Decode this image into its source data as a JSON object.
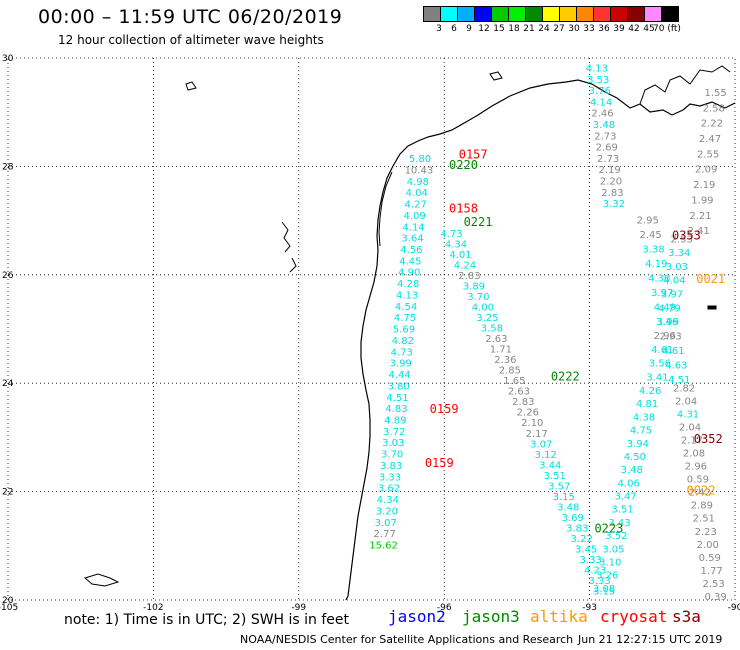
{
  "title": "00:00 – 11:59 UTC 06/20/2019",
  "subtitle": "12 hour collection of altimeter wave heights",
  "legend_scale": {
    "colors": [
      "#808080",
      "#00ffff",
      "#00b0ff",
      "#0000ff",
      "#00cc00",
      "#00ee00",
      "#008800",
      "#ffff00",
      "#ffcc00",
      "#ff8800",
      "#ff3333",
      "#cc0000",
      "#880000",
      "#ff88ff",
      "#000000"
    ],
    "labels": [
      "3",
      "6",
      "9",
      "12",
      "15",
      "18",
      "21",
      "24",
      "27",
      "30",
      "33",
      "36",
      "39",
      "42",
      "45",
      "70 (ft)"
    ]
  },
  "axes": {
    "lon_ticks": [
      "-105",
      "-102",
      "-99",
      "-96",
      "-93",
      "-90"
    ],
    "lat_ticks": [
      "30",
      "28",
      "26",
      "24",
      "22",
      "20"
    ]
  },
  "note": "note:  1) Time is in UTC;  2) SWH is in feet",
  "satellites": [
    {
      "name": "jason2",
      "color": "#0000ff"
    },
    {
      "name": "jason3",
      "color": "#008800"
    },
    {
      "name": "altika",
      "color": "#ff9900"
    },
    {
      "name": "cryosat",
      "color": "#ff0000"
    },
    {
      "name": "s3a",
      "color": "#880000"
    }
  ],
  "footer_left": "NOAA/NESDIS Center for Satellite Applications and Research",
  "footer_right": "Jun 21 12:27:15 UTC 2019",
  "pass_times": [
    {
      "text": "0157",
      "color": "#ff0000",
      "lon": -95.7,
      "lat": 28.15
    },
    {
      "text": "0220",
      "color": "#008800",
      "lon": -95.9,
      "lat": 27.95
    },
    {
      "text": "0158",
      "color": "#ff0000",
      "lon": -95.9,
      "lat": 27.15
    },
    {
      "text": "0221",
      "color": "#008800",
      "lon": -95.6,
      "lat": 26.9
    },
    {
      "text": "0353",
      "color": "#880000",
      "lon": -91.3,
      "lat": 26.65
    },
    {
      "text": "0021",
      "color": "#ff9900",
      "lon": -90.8,
      "lat": 25.85
    },
    {
      "text": "0222",
      "color": "#008800",
      "lon": -93.8,
      "lat": 24.05
    },
    {
      "text": "0159",
      "color": "#ff0000",
      "lon": -96.3,
      "lat": 23.45
    },
    {
      "text": "0352",
      "color": "#880000",
      "lon": -90.85,
      "lat": 22.9
    },
    {
      "text": "0159",
      "color": "#ff0000",
      "lon": -96.4,
      "lat": 22.45
    },
    {
      "text": "0022",
      "color": "#ff9900",
      "lon": -91.0,
      "lat": 21.95
    },
    {
      "text": "0223",
      "color": "#008800",
      "lon": -92.9,
      "lat": 21.25
    },
    {
      "text": "0",
      "color": "#ff9900",
      "lon": -89.85,
      "lat": 29.15
    },
    {
      "text": "0.",
      "color": "#880000",
      "lon": -89.85,
      "lat": 20.0
    }
  ],
  "tracks": [
    {
      "name": "cryosat-west",
      "lon_start": -96.5,
      "lat_start": 28.08,
      "lon_end": -97.25,
      "lat_end": 20.95,
      "values": [
        {
          "v": "5.80",
          "c": "#00e0e0"
        },
        {
          "v": "10.43",
          "c": "#888888"
        },
        {
          "v": "4.98",
          "c": "#00e0e0"
        },
        {
          "v": "4.04",
          "c": "#00e0e0"
        },
        {
          "v": "4.27",
          "c": "#00e0e0"
        },
        {
          "v": "4.09",
          "c": "#00e0e0"
        },
        {
          "v": "4.14",
          "c": "#00e0e0"
        },
        {
          "v": "3.64",
          "c": "#00e0e0"
        },
        {
          "v": "4.56",
          "c": "#00e0e0"
        },
        {
          "v": "4.45",
          "c": "#00e0e0"
        },
        {
          "v": "4.90",
          "c": "#00e0e0"
        },
        {
          "v": "4.28",
          "c": "#00e0e0"
        },
        {
          "v": "4.13",
          "c": "#00e0e0"
        },
        {
          "v": "4.54",
          "c": "#00e0e0"
        },
        {
          "v": "4.75",
          "c": "#00e0e0"
        },
        {
          "v": "5.69",
          "c": "#00e0e0"
        },
        {
          "v": "4.82",
          "c": "#00e0e0"
        },
        {
          "v": "4.73",
          "c": "#00e0e0"
        },
        {
          "v": "3.99",
          "c": "#00e0e0"
        },
        {
          "v": "4.44",
          "c": "#00e0e0"
        },
        {
          "v": "3.80",
          "c": "#00e0e0"
        },
        {
          "v": "4.51",
          "c": "#00e0e0"
        },
        {
          "v": "4.83",
          "c": "#00e0e0"
        },
        {
          "v": "4.89",
          "c": "#00e0e0"
        },
        {
          "v": "3.72",
          "c": "#00e0e0"
        },
        {
          "v": "3.03",
          "c": "#00e0e0"
        },
        {
          "v": "3.70",
          "c": "#00e0e0"
        },
        {
          "v": "3.83",
          "c": "#00e0e0"
        },
        {
          "v": "3.33",
          "c": "#00e0e0"
        },
        {
          "v": "3.62",
          "c": "#00e0e0"
        },
        {
          "v": "4.34",
          "c": "#00e0e0"
        },
        {
          "v": "3.20",
          "c": "#00e0e0"
        },
        {
          "v": "3.07",
          "c": "#00e0e0"
        },
        {
          "v": "2.77",
          "c": "#888888"
        },
        {
          "v": "15.62",
          "c": "#00cc00"
        }
      ]
    },
    {
      "name": "jason3-diag",
      "lon_start": -95.85,
      "lat_start": 26.7,
      "lon_end": -92.7,
      "lat_end": 20.1,
      "values": [
        {
          "v": "4.73",
          "c": "#00e0e0"
        },
        {
          "v": "4.34",
          "c": "#00e0e0"
        },
        {
          "v": "4.01",
          "c": "#00e0e0"
        },
        {
          "v": "4.24",
          "c": "#00e0e0"
        },
        {
          "v": "2.83",
          "c": "#888888"
        },
        {
          "v": "3.89",
          "c": "#00e0e0"
        },
        {
          "v": "3.70",
          "c": "#00e0e0"
        },
        {
          "v": "4.00",
          "c": "#00e0e0"
        },
        {
          "v": "3.25",
          "c": "#00e0e0"
        },
        {
          "v": "3.58",
          "c": "#00e0e0"
        },
        {
          "v": "2.63",
          "c": "#888888"
        },
        {
          "v": "1.71",
          "c": "#888888"
        },
        {
          "v": "2.36",
          "c": "#888888"
        },
        {
          "v": "2.85",
          "c": "#888888"
        },
        {
          "v": "1.65",
          "c": "#888888"
        },
        {
          "v": "2.63",
          "c": "#888888"
        },
        {
          "v": "2.83",
          "c": "#888888"
        },
        {
          "v": "2.26",
          "c": "#888888"
        },
        {
          "v": "2.10",
          "c": "#888888"
        },
        {
          "v": "2.17",
          "c": "#888888"
        },
        {
          "v": "3.07",
          "c": "#00e0e0"
        },
        {
          "v": "3.12",
          "c": "#00e0e0"
        },
        {
          "v": "3.44",
          "c": "#00e0e0"
        },
        {
          "v": "3.51",
          "c": "#00e0e0"
        },
        {
          "v": "3.57",
          "c": "#00e0e0"
        },
        {
          "v": "3.15",
          "c": "#00e0e0"
        },
        {
          "v": "3.48",
          "c": "#00e0e0"
        },
        {
          "v": "3.69",
          "c": "#00e0e0"
        },
        {
          "v": "3.83",
          "c": "#00e0e0"
        },
        {
          "v": "3.22",
          "c": "#00e0e0"
        },
        {
          "v": "3.45",
          "c": "#00e0e0"
        },
        {
          "v": "3.33",
          "c": "#00e0e0"
        },
        {
          "v": "4.23",
          "c": "#00e0e0"
        },
        {
          "v": "3.33",
          "c": "#00e0e0"
        },
        {
          "v": "3.15",
          "c": "#00e0e0"
        }
      ]
    },
    {
      "name": "jason3-north",
      "lon_start": -92.85,
      "lat_start": 29.75,
      "lon_end": -92.5,
      "lat_end": 27.25,
      "values": [
        {
          "v": "4.13",
          "c": "#00e0e0"
        },
        {
          "v": "3.53",
          "c": "#00e0e0"
        },
        {
          "v": "3.76",
          "c": "#00e0e0"
        },
        {
          "v": "4.14",
          "c": "#00e0e0"
        },
        {
          "v": "2.46",
          "c": "#888888"
        },
        {
          "v": "3.48",
          "c": "#00e0e0"
        },
        {
          "v": "2.73",
          "c": "#888888"
        },
        {
          "v": "2.69",
          "c": "#888888"
        },
        {
          "v": "2.73",
          "c": "#888888"
        },
        {
          "v": "2.19",
          "c": "#888888"
        },
        {
          "v": "2.20",
          "c": "#888888"
        },
        {
          "v": "2.83",
          "c": "#888888"
        },
        {
          "v": "3.32",
          "c": "#00e0e0"
        }
      ]
    },
    {
      "name": "s3a-north",
      "lon_start": -91.8,
      "lat_start": 26.95,
      "lon_end": -91.15,
      "lat_end": 24.0,
      "values": [
        {
          "v": "2.95",
          "c": "#888888"
        },
        {
          "v": "2.45",
          "c": "#888888"
        },
        {
          "v": "3.38",
          "c": "#00e0e0"
        },
        {
          "v": "4.19",
          "c": "#00e0e0"
        },
        {
          "v": "4.30",
          "c": "#00e0e0"
        },
        {
          "v": "3.97",
          "c": "#00e0e0"
        },
        {
          "v": "4.49",
          "c": "#00e0e0"
        },
        {
          "v": "3.99",
          "c": "#00e0e0"
        },
        {
          "v": "2.93",
          "c": "#888888"
        },
        {
          "v": "4.61",
          "c": "#00e0e0"
        },
        {
          "v": "4.63",
          "c": "#00e0e0"
        },
        {
          "v": "4.51",
          "c": "#00e0e0"
        }
      ]
    },
    {
      "name": "altika-east",
      "lon_start": -91.1,
      "lat_start": 26.6,
      "lon_end": -91.6,
      "lat_end": 24.05,
      "values": [
        {
          "v": "2.53",
          "c": "#888888"
        },
        {
          "v": "3.34",
          "c": "#00e0e0"
        },
        {
          "v": "3.03",
          "c": "#00e0e0"
        },
        {
          "v": "4.04",
          "c": "#00e0e0"
        },
        {
          "v": "3.97",
          "c": "#00e0e0"
        },
        {
          "v": "4.79",
          "c": "#00e0e0"
        },
        {
          "v": "3.46",
          "c": "#00e0e0"
        },
        {
          "v": "2.96",
          "c": "#888888"
        },
        {
          "v": "4.61",
          "c": "#00e0e0"
        },
        {
          "v": "3.56",
          "c": "#00e0e0"
        },
        {
          "v": "3.41",
          "c": "#00e0e0"
        }
      ]
    },
    {
      "name": "s3a-south",
      "lon_start": -91.75,
      "lat_start": 23.8,
      "lon_end": -92.7,
      "lat_end": 20.15,
      "values": [
        {
          "v": "4.26",
          "c": "#00e0e0"
        },
        {
          "v": "4.81",
          "c": "#00e0e0"
        },
        {
          "v": "4.38",
          "c": "#00e0e0"
        },
        {
          "v": "4.75",
          "c": "#00e0e0"
        },
        {
          "v": "3.94",
          "c": "#00e0e0"
        },
        {
          "v": "4.50",
          "c": "#00e0e0"
        },
        {
          "v": "3.48",
          "c": "#00e0e0"
        },
        {
          "v": "4.06",
          "c": "#00e0e0"
        },
        {
          "v": "3.47",
          "c": "#00e0e0"
        },
        {
          "v": "3.51",
          "c": "#00e0e0"
        },
        {
          "v": "3.43",
          "c": "#00e0e0"
        },
        {
          "v": "3.52",
          "c": "#00e0e0"
        },
        {
          "v": "3.05",
          "c": "#00e0e0"
        },
        {
          "v": "3.10",
          "c": "#00e0e0"
        },
        {
          "v": "3.26",
          "c": "#00e0e0"
        },
        {
          "v": "3.08",
          "c": "#00e0e0"
        }
      ]
    },
    {
      "name": "altika-upper",
      "lon_start": -90.4,
      "lat_start": 29.3,
      "lon_end": -90.75,
      "lat_end": 26.75,
      "values": [
        {
          "v": "1.55",
          "c": "#888888"
        },
        {
          "v": "2.58",
          "c": "#888888"
        },
        {
          "v": "2.22",
          "c": "#888888"
        },
        {
          "v": "2.47",
          "c": "#888888"
        },
        {
          "v": "2.55",
          "c": "#888888"
        },
        {
          "v": "2.09",
          "c": "#888888"
        },
        {
          "v": "2.19",
          "c": "#888888"
        },
        {
          "v": "1.99",
          "c": "#888888"
        },
        {
          "v": "2.21",
          "c": "#888888"
        },
        {
          "v": "2.41",
          "c": "#888888"
        }
      ]
    },
    {
      "name": "altika-lower",
      "lon_start": -91.05,
      "lat_start": 23.85,
      "lon_end": -90.4,
      "lat_end": 20.0,
      "values": [
        {
          "v": "2.82",
          "c": "#888888"
        },
        {
          "v": "2.04",
          "c": "#888888"
        },
        {
          "v": "4.31",
          "c": "#00e0e0"
        },
        {
          "v": "2.04",
          "c": "#888888"
        },
        {
          "v": "2.17",
          "c": "#888888"
        },
        {
          "v": "2.08",
          "c": "#888888"
        },
        {
          "v": "2.96",
          "c": "#888888"
        },
        {
          "v": "0.59",
          "c": "#888888"
        },
        {
          "v": "2.42",
          "c": "#888888"
        },
        {
          "v": "2.89",
          "c": "#888888"
        },
        {
          "v": "2.51",
          "c": "#888888"
        },
        {
          "v": "2.23",
          "c": "#888888"
        },
        {
          "v": "2.00",
          "c": "#888888"
        },
        {
          "v": "0.59",
          "c": "#888888"
        },
        {
          "v": "1.77",
          "c": "#888888"
        },
        {
          "v": "2.53",
          "c": "#888888"
        },
        {
          "v": "0.39",
          "c": "#888888"
        }
      ]
    }
  ]
}
